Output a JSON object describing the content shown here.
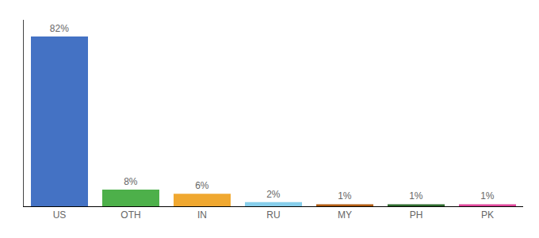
{
  "chart_data": {
    "type": "bar",
    "categories": [
      "US",
      "OTH",
      "IN",
      "RU",
      "MY",
      "PH",
      "PK"
    ],
    "values": [
      82,
      8,
      6,
      2,
      1,
      1,
      1
    ],
    "value_labels": [
      "82%",
      "8%",
      "6%",
      "2%",
      "1%",
      "1%",
      "1%"
    ],
    "colors": [
      "#4472c4",
      "#4db04a",
      "#f0a830",
      "#87ceeb",
      "#b05a10",
      "#2e6b2e",
      "#e0459a"
    ],
    "ylim": [
      0,
      90
    ],
    "data_labels": true,
    "tick_labels": "x",
    "grid": false
  }
}
